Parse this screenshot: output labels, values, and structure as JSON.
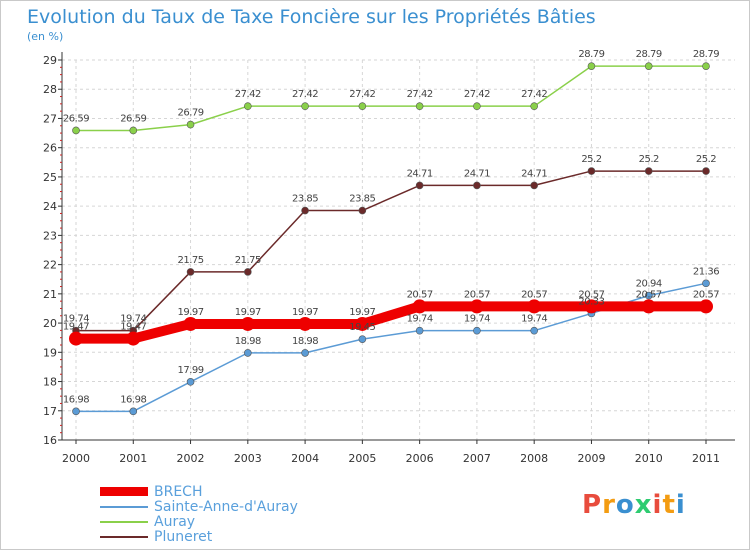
{
  "title": "Evolution du Taux de Taxe Foncière sur les Propriétés Bâties",
  "unit_label": "(en %)",
  "logo": {
    "text": "Proxiti",
    "colors": [
      "#e84c3d",
      "#f39c12",
      "#3a8fd0",
      "#2ecc71",
      "#e84c3d",
      "#f39c12",
      "#3a8fd0"
    ]
  },
  "chart_data": {
    "type": "line",
    "title": "Evolution du Taux de Taxe Foncière sur les Propriétés Bâties",
    "ylabel": "(en %)",
    "xlabel": "",
    "x": [
      "2000",
      "2001",
      "2002",
      "2003",
      "2004",
      "2005",
      "2006",
      "2007",
      "2008",
      "2009",
      "2010",
      "2011"
    ],
    "ylim": [
      16,
      29
    ],
    "yticks": [
      "16",
      "17",
      "18",
      "19",
      "20",
      "21",
      "22",
      "23",
      "24",
      "25",
      "26",
      "27",
      "28",
      "29"
    ],
    "grid": true,
    "legend_position": "bottom-left",
    "series": [
      {
        "name": "BRECH",
        "color": "#ee0000",
        "values": [
          19.47,
          19.47,
          19.97,
          19.97,
          19.97,
          19.97,
          20.57,
          20.57,
          20.57,
          20.57,
          20.57,
          20.57
        ],
        "labels": [
          "19.47",
          "19.47",
          "19.97",
          "19.97",
          "19.97",
          "19.97",
          "20.57",
          "20.57",
          "20.57",
          "20.57",
          "20.57",
          "20.57"
        ]
      },
      {
        "name": "Sainte-Anne-d'Auray",
        "color": "#5b9bd5",
        "values": [
          16.98,
          16.98,
          17.99,
          18.98,
          18.98,
          19.45,
          19.74,
          19.74,
          19.74,
          20.33,
          20.94,
          21.36
        ],
        "labels": [
          "16.98",
          "16.98",
          "17.99",
          "18.98",
          "18.98",
          "19.45",
          "19.74",
          "19.74",
          "19.74",
          "20.33",
          "20.94",
          "21.36"
        ]
      },
      {
        "name": "Auray",
        "color": "#8ad04a",
        "values": [
          26.59,
          26.59,
          26.79,
          27.42,
          27.42,
          27.42,
          27.42,
          27.42,
          27.42,
          28.79,
          28.79,
          28.79
        ],
        "labels": [
          "26.59",
          "26.59",
          "26.79",
          "27.42",
          "27.42",
          "27.42",
          "27.42",
          "27.42",
          "27.42",
          "28.79",
          "28.79",
          "28.79"
        ]
      },
      {
        "name": "Pluneret",
        "color": "#6b2a2a",
        "values": [
          19.74,
          19.74,
          21.75,
          21.75,
          23.85,
          23.85,
          24.71,
          24.71,
          24.71,
          25.2,
          25.2,
          25.2
        ],
        "labels": [
          "19.74",
          "19.74",
          "21.75",
          "21.75",
          "23.85",
          "23.85",
          "24.71",
          "24.71",
          "24.71",
          "25.2",
          "25.2",
          "25.2"
        ]
      }
    ]
  }
}
